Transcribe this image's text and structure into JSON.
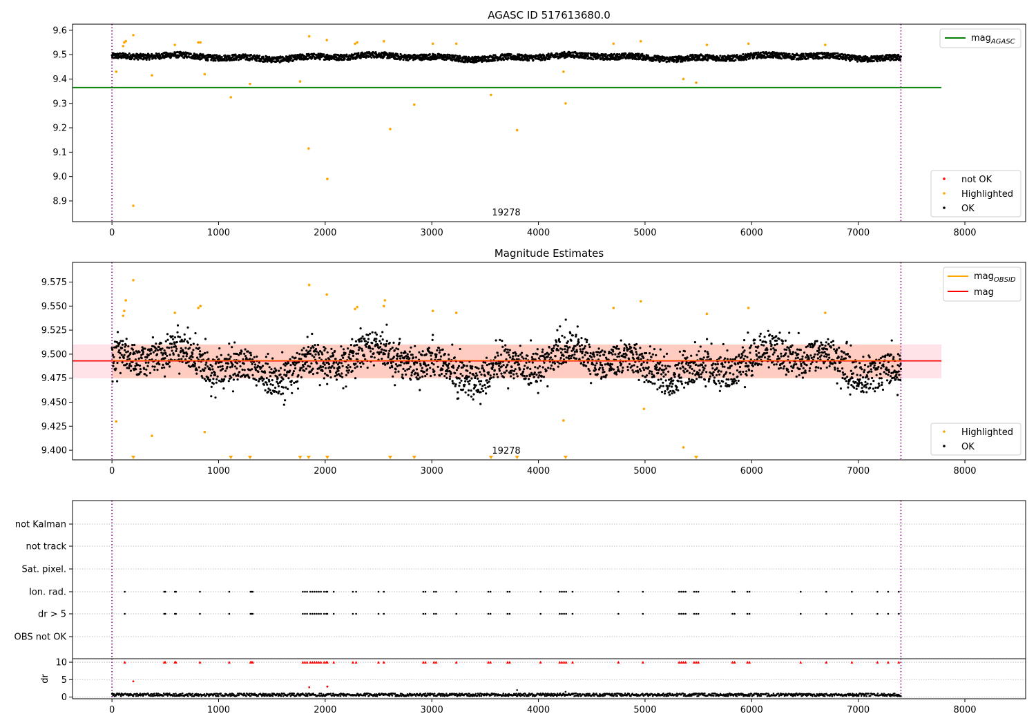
{
  "chart_data": [
    {
      "type": "scatter",
      "title": "AGASC ID 517613680.0",
      "annotation": "19278",
      "xlim": [
        -370,
        8570
      ],
      "ylim": [
        8.815,
        9.625
      ],
      "xticks": [
        0,
        1000,
        2000,
        3000,
        4000,
        5000,
        6000,
        7000,
        8000
      ],
      "yticks": [
        8.9,
        9.0,
        9.1,
        9.2,
        9.3,
        9.4,
        9.5,
        9.6
      ],
      "ytick_labels": [
        "8.9",
        "9.0",
        "9.1",
        "9.2",
        "9.3",
        "9.4",
        "9.5",
        "9.6"
      ],
      "vlines": [
        0,
        7400
      ],
      "hline": {
        "y": 9.365,
        "x_end": 7780,
        "color": "#008000",
        "label": "mag",
        "label_sub": "AGASC"
      },
      "ok_band": {
        "center": 9.49,
        "halfwidth": 0.012
      },
      "ok_range": [
        0,
        7400
      ],
      "legend_loc": "lower-right",
      "legend": [
        {
          "label": "not OK",
          "color": "#ff0000"
        },
        {
          "label": "Highlighted",
          "color": "#ffa500"
        },
        {
          "label": "OK",
          "color": "#000000"
        }
      ],
      "highlighted": [
        [
          40,
          9.43
        ],
        [
          105,
          9.535
        ],
        [
          115,
          9.55
        ],
        [
          130,
          9.555
        ],
        [
          200,
          8.88
        ],
        [
          200,
          9.58
        ],
        [
          375,
          9.415
        ],
        [
          590,
          9.54
        ],
        [
          810,
          9.55
        ],
        [
          830,
          9.55
        ],
        [
          870,
          9.42
        ],
        [
          1115,
          9.325
        ],
        [
          1295,
          9.38
        ],
        [
          1765,
          9.39
        ],
        [
          1845,
          9.115
        ],
        [
          1850,
          9.575
        ],
        [
          2015,
          9.56
        ],
        [
          2020,
          8.99
        ],
        [
          2280,
          9.545
        ],
        [
          2300,
          9.55
        ],
        [
          2550,
          9.555
        ],
        [
          2610,
          9.195
        ],
        [
          2835,
          9.295
        ],
        [
          3010,
          9.545
        ],
        [
          3230,
          9.545
        ],
        [
          3555,
          9.335
        ],
        [
          3800,
          9.19
        ],
        [
          4235,
          9.43
        ],
        [
          4255,
          9.3
        ],
        [
          4705,
          9.545
        ],
        [
          4960,
          9.555
        ],
        [
          5360,
          9.4
        ],
        [
          5480,
          9.385
        ],
        [
          5580,
          9.54
        ],
        [
          5970,
          9.545
        ],
        [
          6690,
          9.54
        ]
      ]
    },
    {
      "type": "scatter",
      "title": "Magnitude Estimates",
      "annotation": "19278",
      "xlim": [
        -370,
        8570
      ],
      "ylim": [
        9.39,
        9.5955
      ],
      "xticks": [
        0,
        1000,
        2000,
        3000,
        4000,
        5000,
        6000,
        7000,
        8000
      ],
      "yticks": [
        9.4,
        9.425,
        9.45,
        9.475,
        9.5,
        9.525,
        9.55,
        9.575
      ],
      "ytick_labels": [
        "9.400",
        "9.425",
        "9.450",
        "9.475",
        "9.500",
        "9.525",
        "9.550",
        "9.575"
      ],
      "vlines": [
        0,
        7400
      ],
      "mean_line": {
        "y": 9.493,
        "x_end": 7780,
        "color": "#ff0000",
        "label": "mag"
      },
      "obsid_line": {
        "color": "#ffa500",
        "label": "mag",
        "label_sub": "OBSID"
      },
      "band": {
        "y0": 9.475,
        "y1": 9.51,
        "x_end": 7780
      },
      "ok_band": {
        "center": 9.49,
        "halfwidth": 0.028
      },
      "ok_range": [
        0,
        7400
      ],
      "legend_loc": "lower-right",
      "legend": [
        {
          "label": "Highlighted",
          "color": "#ffa500"
        },
        {
          "label": "OK",
          "color": "#000000"
        }
      ],
      "highlighted": [
        [
          40,
          9.43
        ],
        [
          105,
          9.54
        ],
        [
          115,
          9.545
        ],
        [
          130,
          9.556
        ],
        [
          200,
          9.577
        ],
        [
          375,
          9.415
        ],
        [
          590,
          9.543
        ],
        [
          810,
          9.548
        ],
        [
          830,
          9.55
        ],
        [
          870,
          9.419
        ],
        [
          1850,
          9.572
        ],
        [
          2015,
          9.562
        ],
        [
          2280,
          9.547
        ],
        [
          2300,
          9.549
        ],
        [
          2550,
          9.55
        ],
        [
          2560,
          9.556
        ],
        [
          3010,
          9.545
        ],
        [
          3230,
          9.543
        ],
        [
          4235,
          9.431
        ],
        [
          4705,
          9.548
        ],
        [
          4960,
          9.555
        ],
        [
          4990,
          9.443
        ],
        [
          5360,
          9.403
        ],
        [
          5580,
          9.542
        ],
        [
          5970,
          9.548
        ],
        [
          6690,
          9.543
        ]
      ],
      "below_limit": [
        200,
        1115,
        1295,
        1765,
        1845,
        2020,
        2610,
        2835,
        3555,
        3800,
        4255,
        5480
      ]
    },
    {
      "type": "scatter",
      "xlim": [
        -370,
        8570
      ],
      "ylim": [
        -0.5,
        11
      ],
      "xticks": [
        0,
        1000,
        2000,
        3000,
        4000,
        5000,
        6000,
        7000,
        8000
      ],
      "yticks": [
        0,
        5,
        10
      ],
      "ytick_labels": [
        "0",
        "5",
        "10"
      ],
      "ylabel": "dr",
      "vlines": [
        0,
        7400
      ],
      "flag_rows": [
        "not Kalman",
        "not track",
        "Sat. pixel.",
        "Ion. rad.",
        "dr > 5",
        "OBS not OK"
      ],
      "flag_times": [
        120,
        490,
        500,
        590,
        600,
        825,
        1100,
        1300,
        1310,
        1320,
        1790,
        1810,
        1830,
        1860,
        1880,
        1900,
        1920,
        1940,
        1960,
        1990,
        2010,
        2020,
        2080,
        2260,
        2290,
        2500,
        2550,
        2920,
        2940,
        3020,
        3040,
        3230,
        3530,
        3550,
        3710,
        3730,
        4020,
        4200,
        4220,
        4240,
        4260,
        4320,
        4750,
        4980,
        5320,
        5340,
        5360,
        5380,
        5460,
        5480,
        5500,
        5820,
        5840,
        5960,
        5980,
        6460,
        6700,
        6940,
        7180,
        7280,
        7380
      ],
      "dr_outliers": [
        [
          200,
          4.5
        ],
        [
          1850,
          2.8
        ],
        [
          2020,
          3.0
        ],
        [
          3800,
          2.0
        ],
        [
          4255,
          1.5
        ]
      ],
      "ok_range": [
        0,
        7400
      ]
    }
  ]
}
